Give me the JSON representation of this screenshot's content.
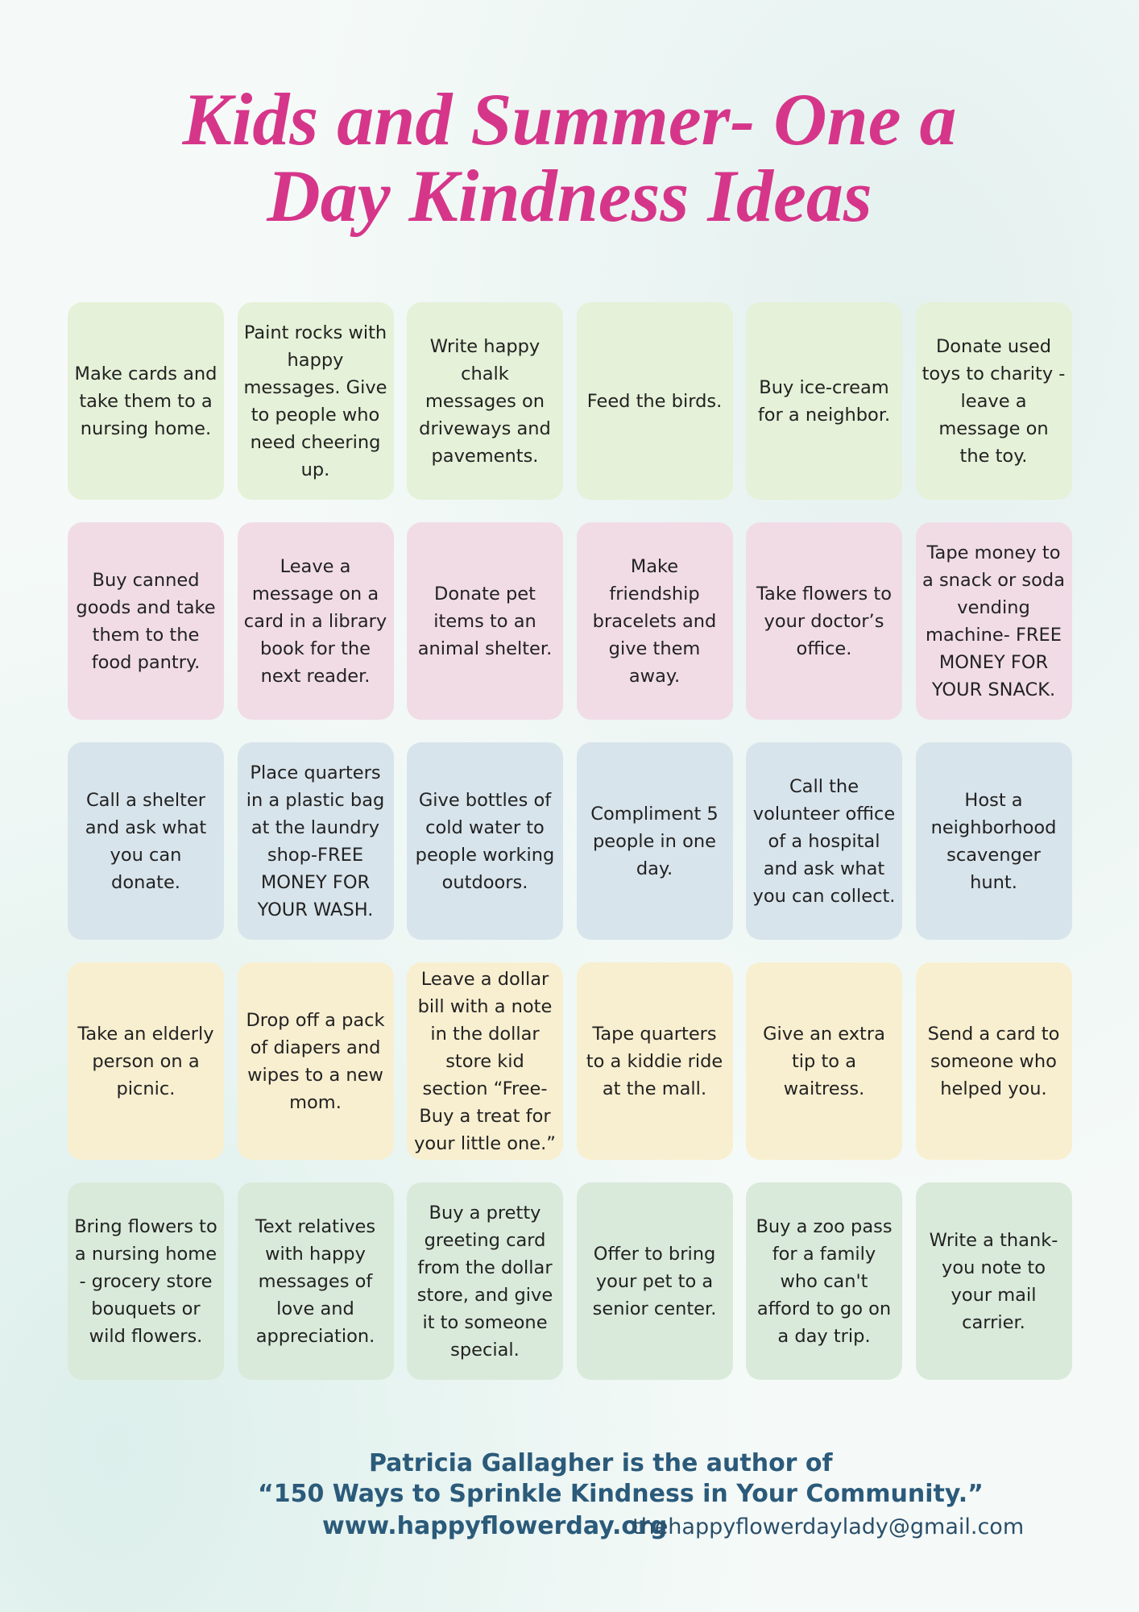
{
  "header": {
    "title_lines": [
      "Kids and Summer- One a",
      "Day Kindness Ideas"
    ]
  },
  "grid": {
    "rows": [
      [
        "Make cards and take them to a nursing home.",
        "Paint rocks with happy messages. Give to people who need cheering up.",
        "Write happy chalk messages on driveways and pavements.",
        "Feed the birds.",
        "Buy ice-cream for a neighbor.",
        "Donate used toys to charity - leave a message on the toy."
      ],
      [
        "Buy canned goods and take them to the food pantry.",
        "Leave a message on a card in a library book for the next reader.",
        "Donate pet items to an animal shelter.",
        "Make friendship bracelets and give them away.",
        "Take flowers to your doctor’s office.",
        "Tape money to a snack or soda vending machine- FREE MONEY FOR YOUR SNACK."
      ],
      [
        "Call a shelter and ask what you can donate.",
        "Place quarters in a plastic bag at the laundry shop-FREE MONEY FOR YOUR WASH.",
        "Give bottles of cold water to people working outdoors.",
        "Compliment 5 people in one day.",
        "Call the volunteer office of a hospital and ask what you can collect.",
        "Host a neighborhood scavenger hunt."
      ],
      [
        "Take an elderly person on a picnic.",
        "Drop off a pack of diapers and wipes to a new mom.",
        "Leave a dollar bill with a note in the dollar store kid section “Free-Buy a treat for your little one.”",
        "Tape quarters to a kiddie ride at the mall.",
        "Give an extra tip to a waitress.",
        "Send a card to someone who helped you."
      ],
      [
        "Bring flowers to a nursing home - grocery store bouquets or wild flowers.",
        "Text relatives with happy messages of love and appreciation.",
        "Buy a pretty greeting card from the dollar store, and give it to someone special.",
        "Offer to bring your pet to a senior center.",
        "Buy a zoo pass for a family who can't afford to go on a day trip.",
        "Write a thank-you note to your mail carrier."
      ]
    ]
  },
  "footer": {
    "line1": "Patricia Gallagher is the author of",
    "line2": "“150 Ways to Sprinkle Kindness in Your Community.”",
    "website": "www.happyflowerday.org",
    "email": "thehappyflowerdaylady@gmail.com"
  }
}
